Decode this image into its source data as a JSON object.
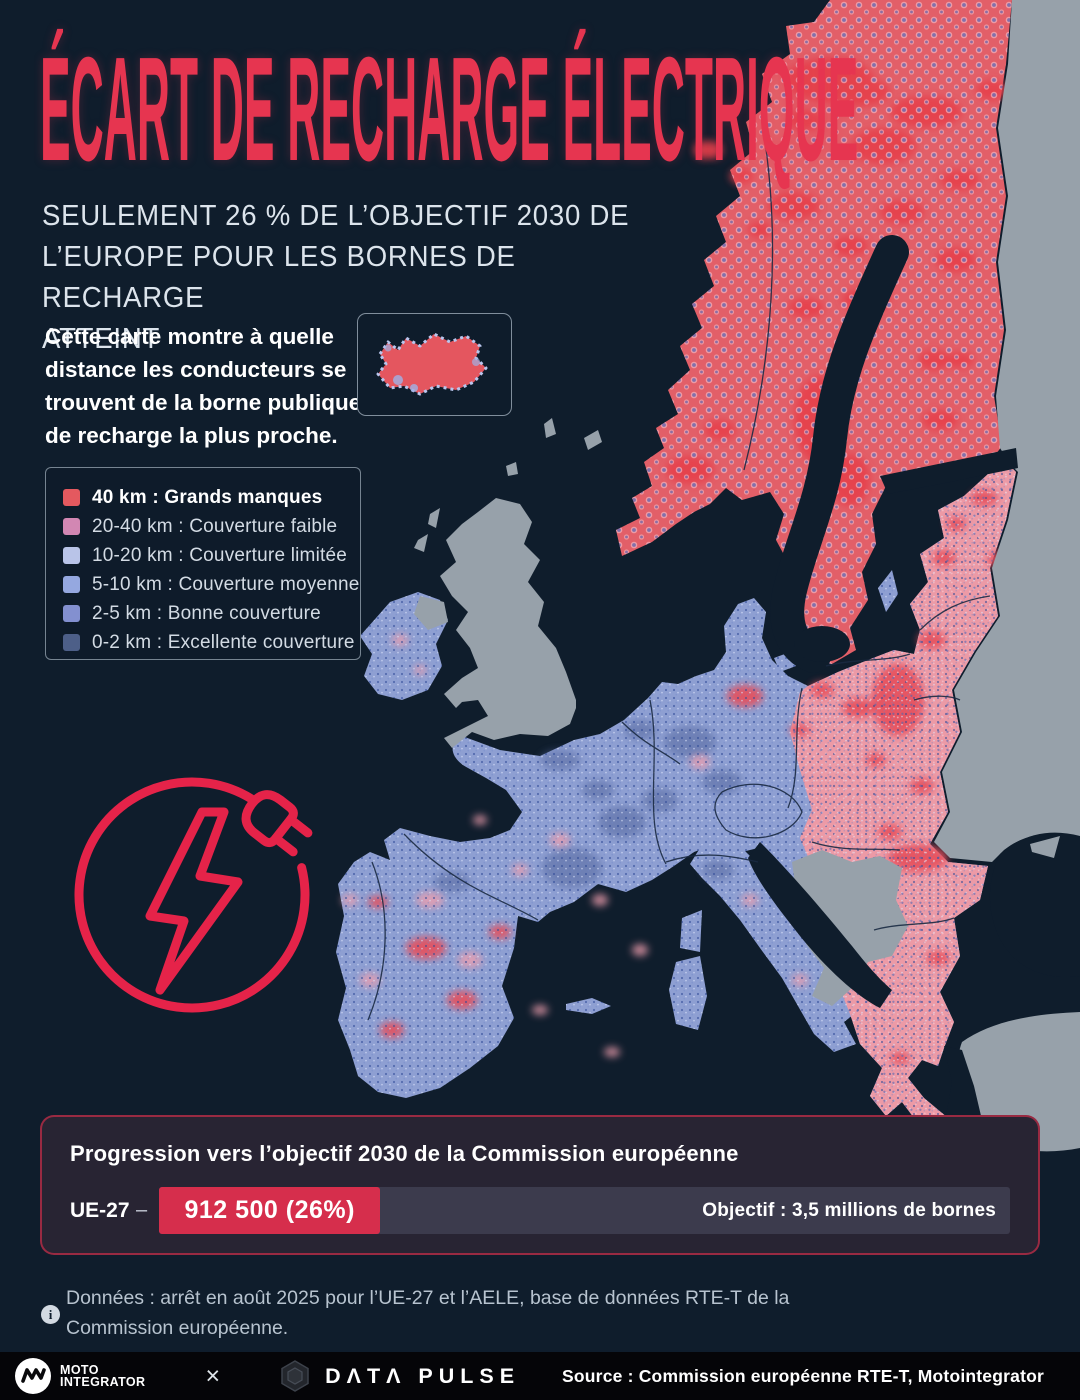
{
  "title": "ÉCART DE RECHARGE ÉLECTRIQUE",
  "subtitle": "SEULEMENT 26 % DE L’OBJECTIF 2030 DE\nL’EUROPE POUR LES BORNES DE RECHARGE\nATTEINT",
  "description": "Cette carte montre à quelle distance les conducteurs se trouvent de la borne publique de recharge la plus proche.",
  "legend": {
    "items": [
      {
        "label": "40 km : Grands manques",
        "color": "#e4595f"
      },
      {
        "label": "20-40 km : Couverture faible",
        "color": "#d287b3"
      },
      {
        "label": "10-20 km : Couverture limitée",
        "color": "#b9c4e8"
      },
      {
        "label": "5-10 km : Couverture moyenne",
        "color": "#95a8e0"
      },
      {
        "label": "2-5 km : Bonne couverture",
        "color": "#8390d0"
      },
      {
        "label": "0-2 km : Excellente couverture",
        "color": "#4d5f88"
      }
    ]
  },
  "progress": {
    "title": "Progression vers l’objectif 2030 de la Commission européenne",
    "row_label": "UE-27",
    "dash": "–",
    "value_label": "912 500 (26%)",
    "percent": 26,
    "objective_label": "Objectif : 3,5 millions de bornes"
  },
  "note": {
    "info_glyph": "i",
    "text": "Données : arrêt en août 2025 pour l’UE-27 et l’AELE, base de données RTE-T de la Commission européenne."
  },
  "footer": {
    "brand1_line1": "MOTO",
    "brand1_line2": "INTEGRATOR",
    "separator": "×",
    "brand2": "DΛTΛ PULSE",
    "source": "Source : Commission européenne RTE-T, Motointegrator"
  },
  "colors": {
    "background": "#0f1d2c",
    "accent_red": "#e63550",
    "badge_red": "#d62e4c",
    "bar_track": "#3c3b4d",
    "panel_bg": "#282433",
    "land_gray": "#97a1aa",
    "land_blue": "#8e9fd2",
    "land_pink": "#ec9aa6",
    "land_red": "#e25f68"
  }
}
